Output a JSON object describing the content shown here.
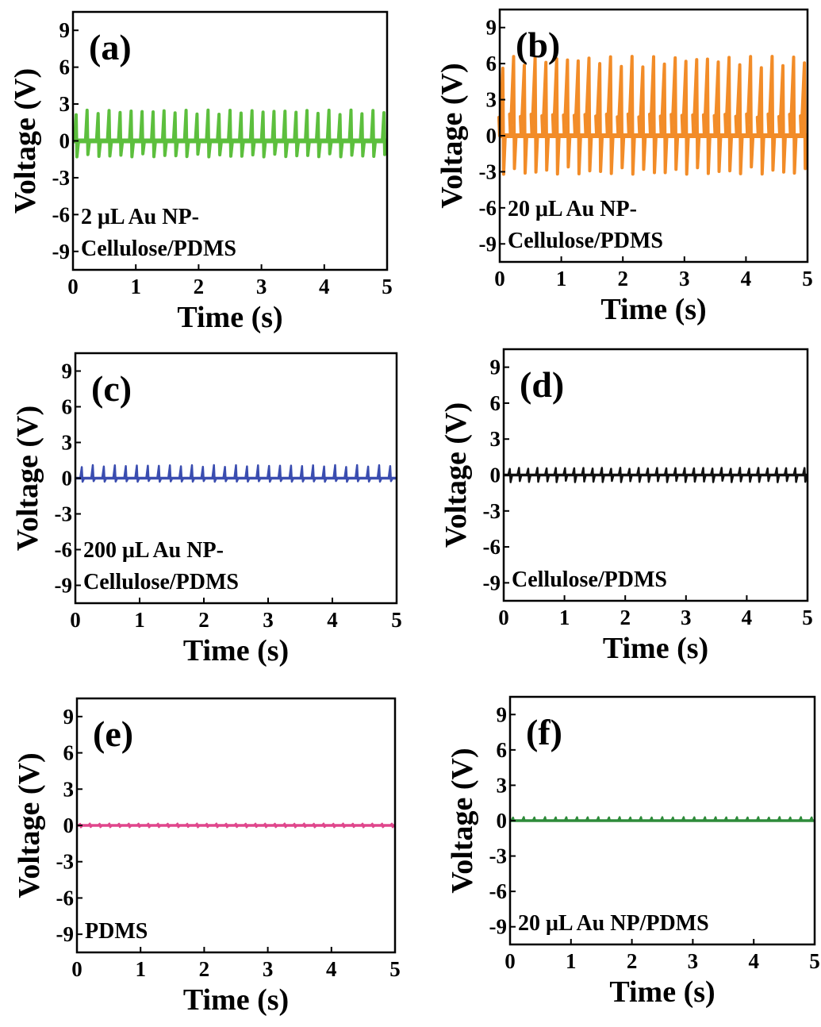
{
  "chart_data": [
    {
      "type": "line",
      "panel_label": "(a)",
      "annotation": [
        "2 μL Au NP-",
        "Cellulose/PDMS"
      ],
      "xlabel": "Time (s)",
      "ylabel": "Voltage (V)",
      "xlim": [
        0,
        5
      ],
      "ylim": [
        -10.5,
        10.5
      ],
      "xticks": [
        0,
        1,
        2,
        3,
        4,
        5
      ],
      "yticks": [
        9,
        6,
        3,
        0,
        -3,
        -6,
        -9
      ],
      "color": "#5cbf3d",
      "signal": {
        "pulses": 29,
        "t_start": 0.05,
        "t_end": 4.95,
        "peak_max": 2.5,
        "peak_min": -1.3
      }
    },
    {
      "type": "line",
      "panel_label": "(b)",
      "annotation": [
        "20 μL Au NP-",
        "Cellulose/PDMS"
      ],
      "xlabel": "Time (s)",
      "ylabel": "Voltage (V)",
      "xlim": [
        0,
        5
      ],
      "ylim": [
        -10.5,
        10.5
      ],
      "xticks": [
        0,
        1,
        2,
        3,
        4,
        5
      ],
      "yticks": [
        9,
        6,
        3,
        0,
        -3,
        -6,
        -9
      ],
      "color": "#f28c28",
      "signal": {
        "pulses": 29,
        "t_start": 0.05,
        "t_end": 4.95,
        "peak_max": 6.6,
        "peak_min": -3.2,
        "pre_peak": 1.8
      }
    },
    {
      "type": "line",
      "panel_label": "(c)",
      "annotation": [
        "200 μL Au NP-",
        "Cellulose/PDMS"
      ],
      "xlabel": "Time (s)",
      "ylabel": "Voltage (V)",
      "xlim": [
        0,
        5
      ],
      "ylim": [
        -10.5,
        10.5
      ],
      "xticks": [
        0,
        1,
        2,
        3,
        4,
        5
      ],
      "yticks": [
        9,
        6,
        3,
        0,
        -3,
        -6,
        -9
      ],
      "color": "#3a4db0",
      "signal": {
        "pulses": 29,
        "t_start": 0.1,
        "t_end": 4.9,
        "peak_max": 1.1,
        "peak_min": -0.3
      }
    },
    {
      "type": "line",
      "panel_label": "(d)",
      "annotation": [
        "Cellulose/PDMS"
      ],
      "xlabel": "Time (s)",
      "ylabel": "Voltage (V)",
      "xlim": [
        0,
        5
      ],
      "ylim": [
        -10.5,
        10.5
      ],
      "xticks": [
        0,
        1,
        2,
        3,
        4,
        5
      ],
      "yticks": [
        9,
        6,
        3,
        0,
        -3,
        -6,
        -9
      ],
      "color": "#111111",
      "signal": {
        "pulses": 33,
        "t_start": 0.1,
        "t_end": 4.95,
        "peak_max": 0.6,
        "peak_min": -0.6
      }
    },
    {
      "type": "line",
      "panel_label": "(e)",
      "annotation": [
        "PDMS"
      ],
      "xlabel": "Time (s)",
      "ylabel": "Voltage (V)",
      "xlim": [
        0,
        5
      ],
      "ylim": [
        -10.5,
        10.5
      ],
      "xticks": [
        0,
        1,
        2,
        3,
        4,
        5
      ],
      "yticks": [
        9,
        6,
        3,
        0,
        -3,
        -6,
        -9
      ],
      "color": "#e0468c",
      "signal": {
        "pulses": 33,
        "t_start": 0.05,
        "t_end": 4.95,
        "peak_max": 0.15,
        "peak_min": -0.15
      }
    },
    {
      "type": "line",
      "panel_label": "(f)",
      "annotation": [
        "20 μL Au NP/PDMS"
      ],
      "xlabel": "Time (s)",
      "ylabel": "Voltage (V)",
      "xlim": [
        0,
        5
      ],
      "ylim": [
        -10.5,
        10.5
      ],
      "xticks": [
        0,
        1,
        2,
        3,
        4,
        5
      ],
      "yticks": [
        9,
        6,
        3,
        0,
        -3,
        -6,
        -9
      ],
      "color": "#2e8b3a",
      "signal": {
        "pulses": 29,
        "t_start": 0.05,
        "t_end": 4.95,
        "peak_max": 0.3,
        "peak_min": 0
      }
    }
  ]
}
